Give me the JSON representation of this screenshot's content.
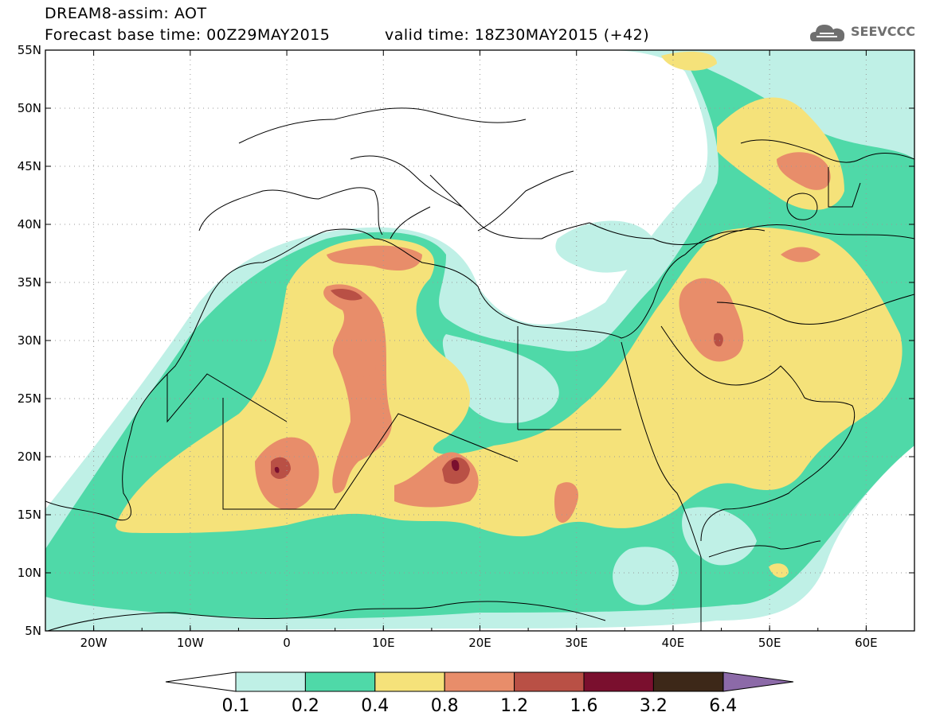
{
  "header": {
    "line1": "DREAM8-assim: AOT",
    "line2": "Forecast base time: 00Z29MAY2015",
    "valid": "valid time: 18Z30MAY2015 (+42)"
  },
  "logo": {
    "text": "SEEVCCC",
    "icon": "cloud-icon"
  },
  "map": {
    "lon_range": [
      -25,
      65
    ],
    "lat_range": [
      5,
      55
    ],
    "lat_labels": [
      "55N",
      "50N",
      "45N",
      "40N",
      "35N",
      "30N",
      "25N",
      "20N",
      "15N",
      "10N",
      "5N"
    ],
    "lon_labels": [
      "20W",
      "10W",
      "0",
      "10E",
      "20E",
      "30E",
      "40E",
      "50E",
      "60E"
    ]
  },
  "colorbar": {
    "labels": [
      "0.1",
      "0.2",
      "0.4",
      "0.8",
      "1.2",
      "1.6",
      "3.2",
      "6.4"
    ],
    "colors": [
      "#bff0e6",
      "#4fd9a8",
      "#f5e27a",
      "#e88d6a",
      "#b95045",
      "#7a0f2e",
      "#3d2818",
      "#8c6aa8"
    ],
    "under_color": "#ffffff"
  }
}
